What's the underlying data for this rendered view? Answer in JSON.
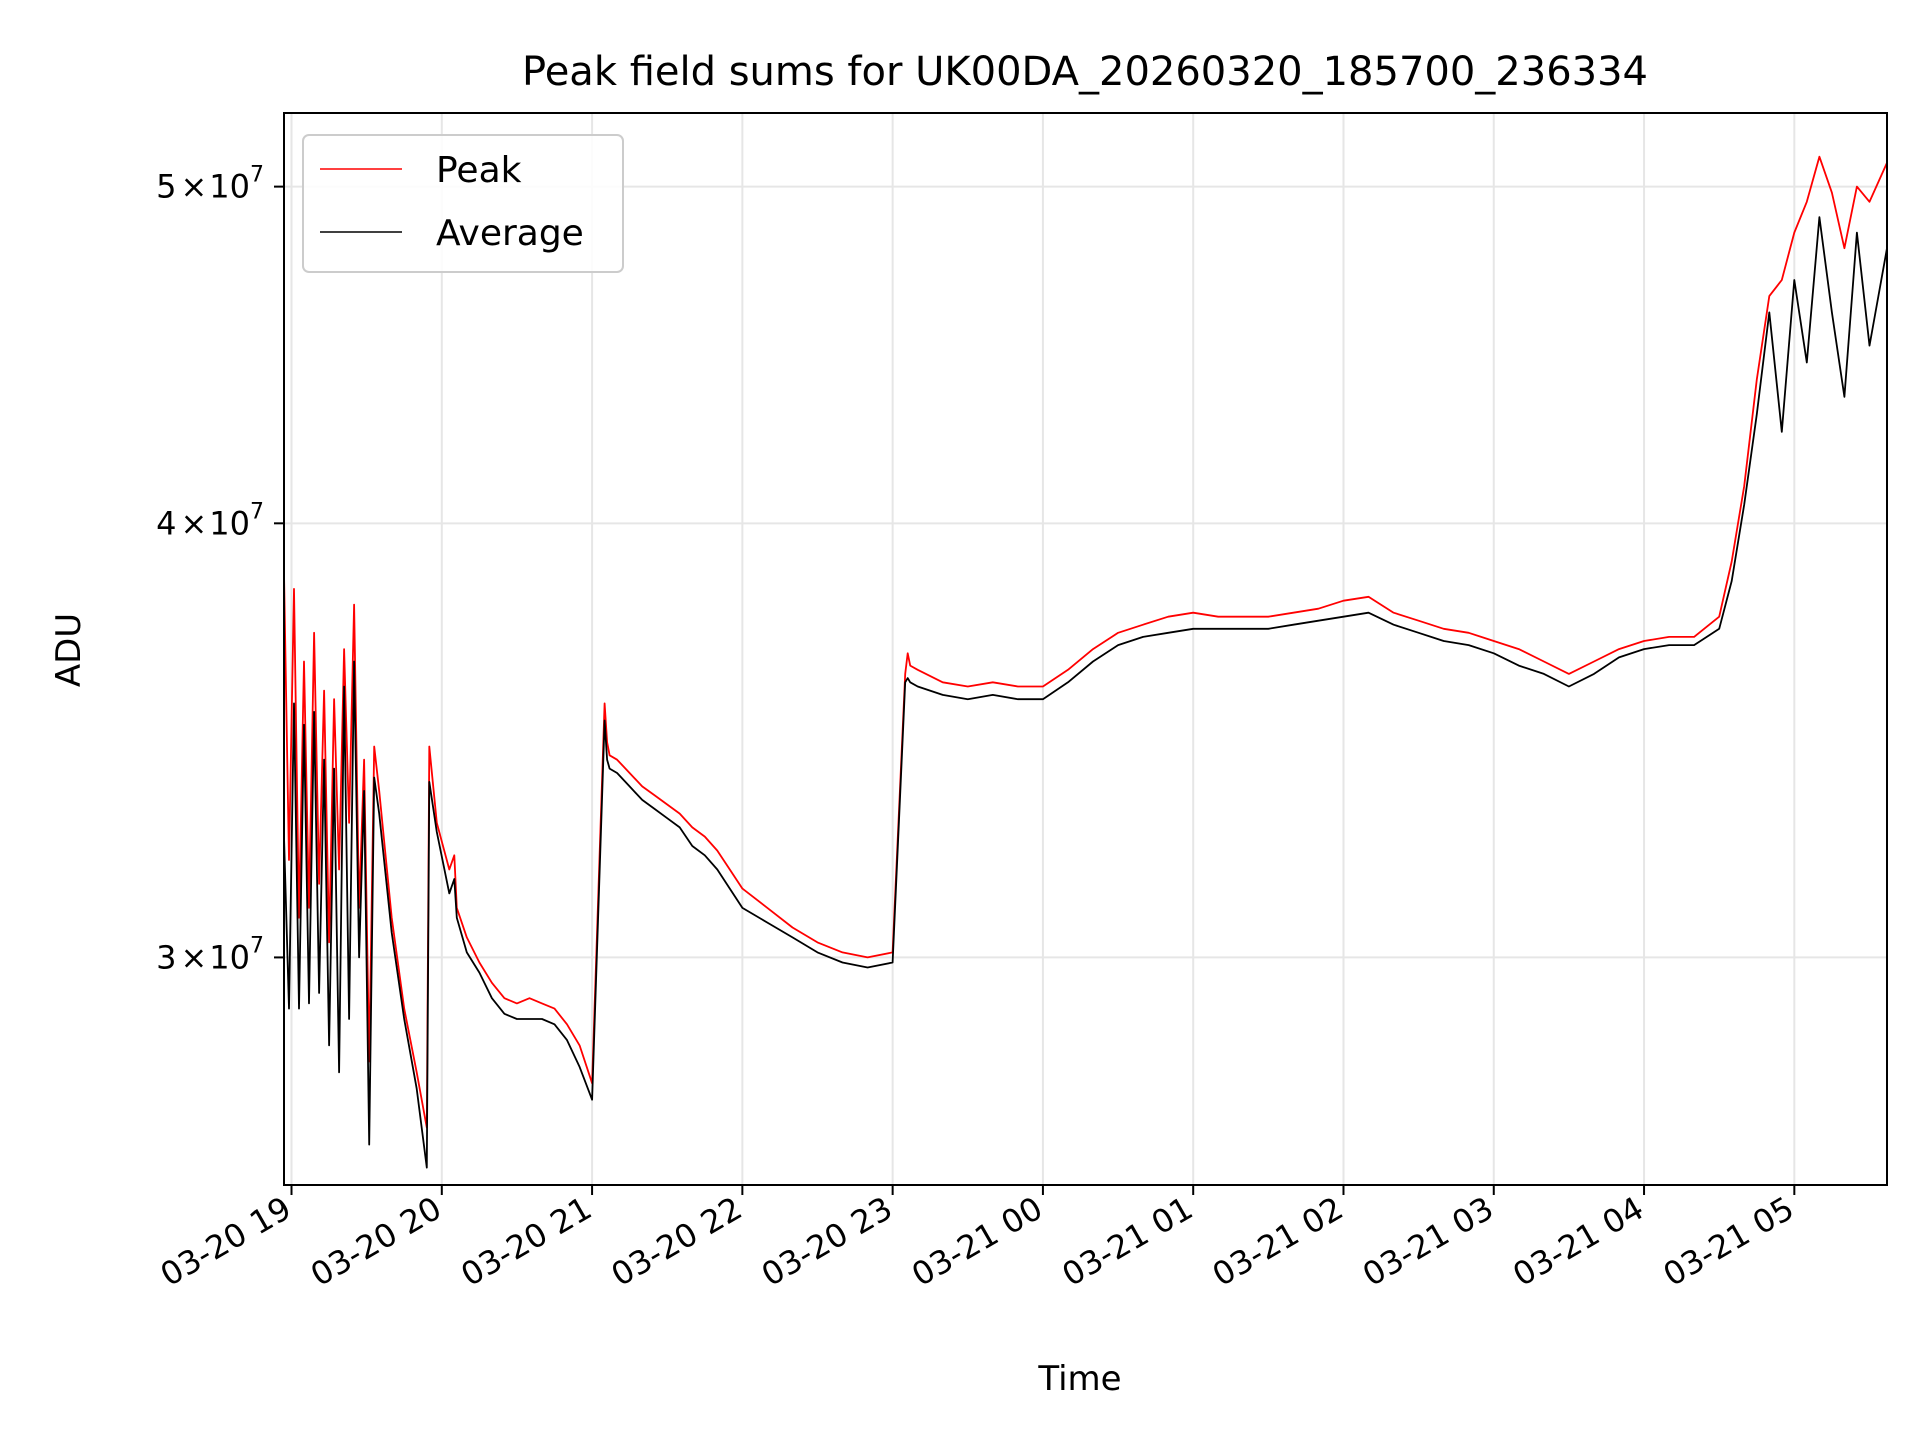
{
  "chart_data": {
    "type": "line",
    "title": "Peak field sums for UK00DA_20260320_185700_236334",
    "xlabel": "Time",
    "ylabel": "ADU",
    "y_scale": "log",
    "ylim": [
      25800000,
      52500000
    ],
    "xlim": [
      "03-20 18:57",
      "03-21 05:37"
    ],
    "grid": true,
    "legend_position": "top-left",
    "x_ticks": [
      {
        "value": "03-20 19:00",
        "label": "03-20 19"
      },
      {
        "value": "03-20 20:00",
        "label": "03-20 20"
      },
      {
        "value": "03-20 21:00",
        "label": "03-20 21"
      },
      {
        "value": "03-20 22:00",
        "label": "03-20 22"
      },
      {
        "value": "03-20 23:00",
        "label": "03-20 23"
      },
      {
        "value": "03-21 00:00",
        "label": "03-21 00"
      },
      {
        "value": "03-21 01:00",
        "label": "03-21 01"
      },
      {
        "value": "03-21 02:00",
        "label": "03-21 02"
      },
      {
        "value": "03-21 03:00",
        "label": "03-21 03"
      },
      {
        "value": "03-21 04:00",
        "label": "03-21 04"
      },
      {
        "value": "03-21 05:00",
        "label": "03-21 05"
      }
    ],
    "y_ticks": [
      {
        "value": 30000000,
        "mantissa": "3",
        "times": "×",
        "base": "10",
        "exponent": "7"
      },
      {
        "value": 40000000,
        "mantissa": "4",
        "times": "×",
        "base": "10",
        "exponent": "7"
      },
      {
        "value": 50000000,
        "mantissa": "5",
        "times": "×",
        "base": "10",
        "exponent": "7"
      }
    ],
    "series": [
      {
        "name": "Peak",
        "color": "#ff0000",
        "x": [
          "03-20 18:57",
          "03-20 18:59",
          "03-20 19:01",
          "03-20 19:03",
          "03-20 19:05",
          "03-20 19:07",
          "03-20 19:09",
          "03-20 19:11",
          "03-20 19:13",
          "03-20 19:15",
          "03-20 19:17",
          "03-20 19:19",
          "03-20 19:21",
          "03-20 19:23",
          "03-20 19:25",
          "03-20 19:27",
          "03-20 19:29",
          "03-20 19:31",
          "03-20 19:33",
          "03-20 19:35",
          "03-20 19:40",
          "03-20 19:45",
          "03-20 19:50",
          "03-20 19:54",
          "03-20 19:55",
          "03-20 19:58",
          "03-20 20:03",
          "03-20 20:05",
          "03-20 20:06",
          "03-20 20:10",
          "03-20 20:15",
          "03-20 20:20",
          "03-20 20:25",
          "03-20 20:30",
          "03-20 20:35",
          "03-20 20:40",
          "03-20 20:45",
          "03-20 20:50",
          "03-20 20:55",
          "03-20 21:00",
          "03-20 21:05",
          "03-20 21:06",
          "03-20 21:07",
          "03-20 21:10",
          "03-20 21:15",
          "03-20 21:20",
          "03-20 21:25",
          "03-20 21:30",
          "03-20 21:35",
          "03-20 21:40",
          "03-20 21:45",
          "03-20 21:50",
          "03-20 21:55",
          "03-20 22:00",
          "03-20 22:10",
          "03-20 22:20",
          "03-20 22:30",
          "03-20 22:40",
          "03-20 22:50",
          "03-20 23:00",
          "03-20 23:05",
          "03-20 23:06",
          "03-20 23:07",
          "03-20 23:10",
          "03-20 23:20",
          "03-20 23:30",
          "03-20 23:40",
          "03-20 23:50",
          "03-21 00:00",
          "03-21 00:10",
          "03-21 00:20",
          "03-21 00:30",
          "03-21 00:40",
          "03-21 00:50",
          "03-21 01:00",
          "03-21 01:10",
          "03-21 01:20",
          "03-21 01:30",
          "03-21 01:40",
          "03-21 01:50",
          "03-21 02:00",
          "03-21 02:10",
          "03-21 02:20",
          "03-21 02:30",
          "03-21 02:40",
          "03-21 02:50",
          "03-21 03:00",
          "03-21 03:10",
          "03-21 03:20",
          "03-21 03:30",
          "03-21 03:40",
          "03-21 03:50",
          "03-21 04:00",
          "03-21 04:10",
          "03-21 04:20",
          "03-21 04:30",
          "03-21 04:35",
          "03-21 04:40",
          "03-21 04:45",
          "03-21 04:50",
          "03-21 04:55",
          "03-21 05:00",
          "03-21 05:05",
          "03-21 05:10",
          "03-21 05:15",
          "03-21 05:20",
          "03-21 05:25",
          "03-21 05:30",
          "03-21 05:37"
        ],
        "values": [
          38700000,
          32000000,
          38300000,
          30800000,
          36500000,
          31000000,
          37200000,
          31500000,
          35800000,
          30300000,
          35600000,
          31800000,
          36800000,
          32800000,
          37900000,
          31000000,
          34200000,
          28000000,
          34500000,
          33500000,
          30800000,
          29000000,
          27800000,
          26800000,
          34500000,
          32800000,
          31800000,
          32100000,
          31000000,
          30400000,
          29900000,
          29500000,
          29200000,
          29100000,
          29200000,
          29100000,
          29000000,
          28700000,
          28300000,
          27600000,
          35500000,
          34600000,
          34300000,
          34200000,
          33900000,
          33600000,
          33400000,
          33200000,
          33000000,
          32700000,
          32500000,
          32200000,
          31800000,
          31400000,
          31000000,
          30600000,
          30300000,
          30100000,
          30000000,
          30100000,
          36200000,
          36700000,
          36400000,
          36300000,
          36000000,
          35900000,
          36000000,
          35900000,
          35900000,
          36300000,
          36800000,
          37200000,
          37400000,
          37600000,
          37700000,
          37600000,
          37600000,
          37600000,
          37700000,
          37800000,
          38000000,
          38100000,
          37700000,
          37500000,
          37300000,
          37200000,
          37000000,
          36800000,
          36500000,
          36200000,
          36500000,
          36800000,
          37000000,
          37100000,
          37100000,
          37600000,
          39000000,
          41000000,
          44000000,
          46500000,
          47000000,
          48500000,
          49500000,
          51000000,
          49800000,
          48000000,
          50000000,
          49500000,
          50800000
        ]
      },
      {
        "name": "Average",
        "color": "#000000",
        "x": [
          "03-20 18:57",
          "03-20 18:59",
          "03-20 19:01",
          "03-20 19:03",
          "03-20 19:05",
          "03-20 19:07",
          "03-20 19:09",
          "03-20 19:11",
          "03-20 19:13",
          "03-20 19:15",
          "03-20 19:17",
          "03-20 19:19",
          "03-20 19:21",
          "03-20 19:23",
          "03-20 19:25",
          "03-20 19:27",
          "03-20 19:29",
          "03-20 19:31",
          "03-20 19:33",
          "03-20 19:35",
          "03-20 19:40",
          "03-20 19:45",
          "03-20 19:50",
          "03-20 19:54",
          "03-20 19:55",
          "03-20 19:58",
          "03-20 20:03",
          "03-20 20:05",
          "03-20 20:06",
          "03-20 20:10",
          "03-20 20:15",
          "03-20 20:20",
          "03-20 20:25",
          "03-20 20:30",
          "03-20 20:35",
          "03-20 20:40",
          "03-20 20:45",
          "03-20 20:50",
          "03-20 20:55",
          "03-20 21:00",
          "03-20 21:05",
          "03-20 21:06",
          "03-20 21:07",
          "03-20 21:10",
          "03-20 21:15",
          "03-20 21:20",
          "03-20 21:25",
          "03-20 21:30",
          "03-20 21:35",
          "03-20 21:40",
          "03-20 21:45",
          "03-20 21:50",
          "03-20 21:55",
          "03-20 22:00",
          "03-20 22:10",
          "03-20 22:20",
          "03-20 22:30",
          "03-20 22:40",
          "03-20 22:50",
          "03-20 23:00",
          "03-20 23:05",
          "03-20 23:06",
          "03-20 23:07",
          "03-20 23:10",
          "03-20 23:20",
          "03-20 23:30",
          "03-20 23:40",
          "03-20 23:50",
          "03-21 00:00",
          "03-21 00:10",
          "03-21 00:20",
          "03-21 00:30",
          "03-21 00:40",
          "03-21 00:50",
          "03-21 01:00",
          "03-21 01:10",
          "03-21 01:20",
          "03-21 01:30",
          "03-21 01:40",
          "03-21 01:50",
          "03-21 02:00",
          "03-21 02:10",
          "03-21 02:20",
          "03-21 02:30",
          "03-21 02:40",
          "03-21 02:50",
          "03-21 03:00",
          "03-21 03:10",
          "03-21 03:20",
          "03-21 03:30",
          "03-21 03:40",
          "03-21 03:50",
          "03-21 04:00",
          "03-21 04:10",
          "03-21 04:20",
          "03-21 04:30",
          "03-21 04:35",
          "03-21 04:40",
          "03-21 04:45",
          "03-21 04:50",
          "03-21 04:55",
          "03-21 05:00",
          "03-21 05:05",
          "03-21 05:10",
          "03-21 05:15",
          "03-21 05:20",
          "03-21 05:25",
          "03-21 05:30",
          "03-21 05:37"
        ],
        "values": [
          32500000,
          29000000,
          35500000,
          29000000,
          35000000,
          29100000,
          35300000,
          29300000,
          34200000,
          28300000,
          34000000,
          27800000,
          35900000,
          28800000,
          36500000,
          30000000,
          33500000,
          26500000,
          33800000,
          33000000,
          30500000,
          28800000,
          27500000,
          26100000,
          33700000,
          32600000,
          31300000,
          31600000,
          30800000,
          30100000,
          29700000,
          29200000,
          28900000,
          28800000,
          28800000,
          28800000,
          28700000,
          28400000,
          27900000,
          27300000,
          35100000,
          34200000,
          34000000,
          33900000,
          33600000,
          33300000,
          33100000,
          32900000,
          32700000,
          32300000,
          32100000,
          31800000,
          31400000,
          31000000,
          30700000,
          30400000,
          30100000,
          29900000,
          29800000,
          29900000,
          36000000,
          36100000,
          36000000,
          35900000,
          35700000,
          35600000,
          35700000,
          35600000,
          35600000,
          36000000,
          36500000,
          36900000,
          37100000,
          37200000,
          37300000,
          37300000,
          37300000,
          37300000,
          37400000,
          37500000,
          37600000,
          37700000,
          37400000,
          37200000,
          37000000,
          36900000,
          36700000,
          36400000,
          36200000,
          35900000,
          36200000,
          36600000,
          36800000,
          36900000,
          36900000,
          37300000,
          38500000,
          40500000,
          43000000,
          46000000,
          42500000,
          47000000,
          44500000,
          49000000,
          46000000,
          43500000,
          48500000,
          45000000,
          48000000
        ]
      }
    ]
  }
}
